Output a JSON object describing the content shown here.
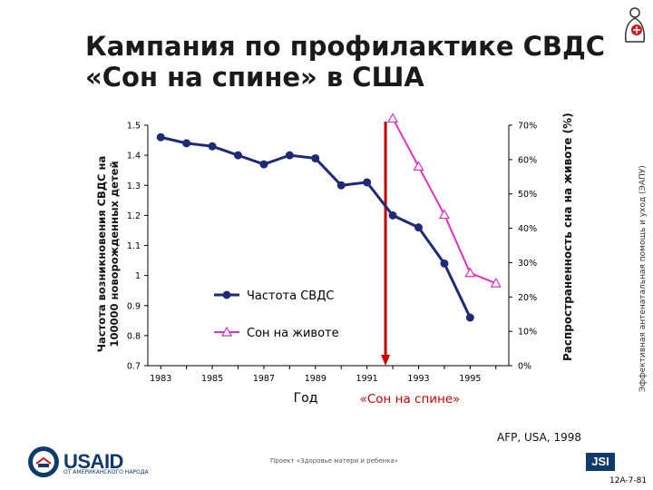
{
  "title_line1": "Кампания по профилактике СВДС",
  "title_line2": "«Сон на спине» в США",
  "logo_right_text": "Эффективная антенатальная помощь и уход (ЭАПУ)",
  "source_text": "AFP, USA, 1998",
  "footer_project": "Проект «Здоровье матери и ребенка»",
  "footer_code": "12A-7-81",
  "usaid": {
    "name": "USAID",
    "subtitle": "ОТ АМЕРИКАНСКОГО НАРОДА"
  },
  "jsi_label": "JSI",
  "colors": {
    "sids": "#1e2a78",
    "stomach": "#e62ec4",
    "campaign": "#cc0000"
  },
  "chart_data": {
    "type": "line",
    "x": [
      1983,
      1984,
      1985,
      1986,
      1987,
      1988,
      1989,
      1990,
      1991,
      1992,
      1993,
      1994,
      1995
    ],
    "x_ticks": [
      "1983",
      "1985",
      "1987",
      "1989",
      "1991",
      "1993",
      "1995"
    ],
    "y_left_ticks": [
      "0.7",
      "0.8",
      "0.9",
      "1",
      "1.1",
      "1.2",
      "1.3",
      "1.4",
      "1.5"
    ],
    "y_right_ticks": [
      "0%",
      "10%",
      "20%",
      "30%",
      "40%",
      "50%",
      "60%",
      "70%"
    ],
    "ylim_left": [
      0.7,
      1.5
    ],
    "ylim_right": [
      0,
      70
    ],
    "ylabel_left": "Частота возникновения СВДС на 100000 новорожденных детей",
    "ylabel_right": "Распространенность сна на животе (%)",
    "xlabel": "Год",
    "annotation": {
      "label": "«Сон на спине»",
      "x": 1992
    },
    "series": [
      {
        "name": "Частота СВДС",
        "axis": "left",
        "x": [
          1983,
          1984,
          1985,
          1986,
          1987,
          1988,
          1989,
          1990,
          1991,
          1992,
          1993,
          1994,
          1995
        ],
        "values": [
          1.46,
          1.44,
          1.43,
          1.4,
          1.37,
          1.4,
          1.39,
          1.3,
          1.31,
          1.2,
          1.16,
          1.04,
          0.86
        ]
      },
      {
        "name": "Сон на животе",
        "axis": "right",
        "x": [
          1992,
          1993,
          1994,
          1995,
          1996
        ],
        "values": [
          72,
          58,
          44,
          27,
          24
        ]
      }
    ],
    "legend_placement": "bottom-left"
  }
}
